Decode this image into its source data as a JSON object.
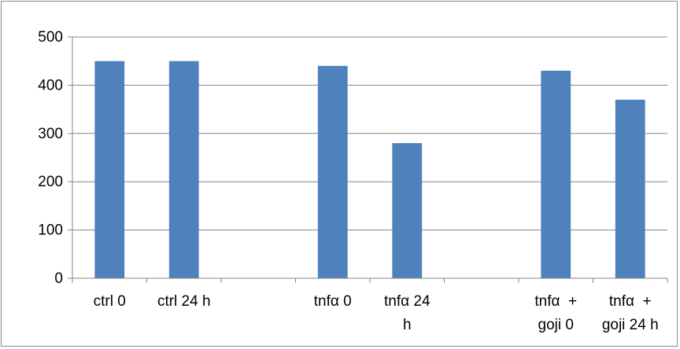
{
  "chart_data": {
    "type": "bar",
    "categories": [
      [
        "ctrl 0"
      ],
      [
        "ctrl 24 h"
      ],
      [
        ""
      ],
      [
        "tnfα 0"
      ],
      [
        "tnfα 24",
        "h"
      ],
      [
        ""
      ],
      [
        "tnfα  +",
        "goji 0"
      ],
      [
        "tnfα  +",
        "goji 24 h"
      ]
    ],
    "values": [
      450,
      450,
      null,
      440,
      280,
      null,
      430,
      370
    ],
    "ylim": [
      0,
      500
    ],
    "yticks": [
      0,
      100,
      200,
      300,
      400,
      500
    ],
    "grid": true,
    "legend": "none",
    "bar_color": "#4F81BD",
    "grid_color": "#868686"
  }
}
